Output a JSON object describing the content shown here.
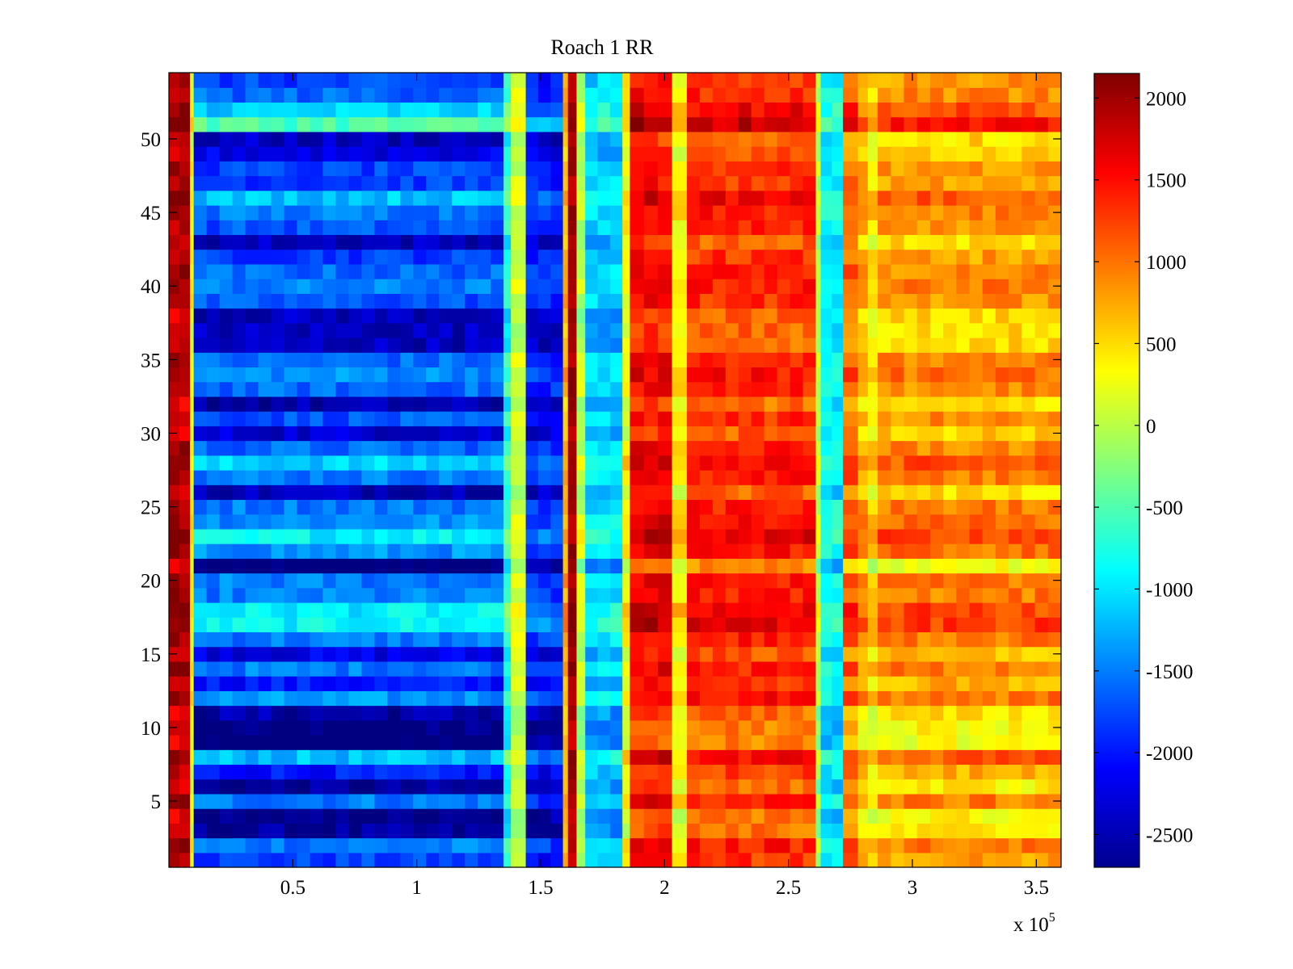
{
  "chart_data": {
    "type": "heatmap",
    "title": "Roach 1 RR",
    "xlabel": "",
    "ylabel": "",
    "x_range": [
      0,
      360000
    ],
    "y_range": [
      0.5,
      54.5
    ],
    "x_ticks": [
      50000,
      100000,
      150000,
      200000,
      250000,
      300000,
      350000
    ],
    "x_tick_labels": [
      "0.5",
      "1",
      "1.5",
      "2",
      "2.5",
      "3",
      "3.5"
    ],
    "x_multiplier_label": "x 10",
    "x_multiplier_exponent": "5",
    "y_ticks": [
      5,
      10,
      15,
      20,
      25,
      30,
      35,
      40,
      45,
      50
    ],
    "y_tick_labels": [
      "5",
      "10",
      "15",
      "20",
      "25",
      "30",
      "35",
      "40",
      "45",
      "50"
    ],
    "rows": 54,
    "colormap": "jet",
    "color_range": [
      -2700,
      2150
    ],
    "colorbar": {
      "ticks": [
        2000,
        1500,
        1000,
        500,
        0,
        -500,
        -1000,
        -1500,
        -2000,
        -2500
      ],
      "tick_labels": [
        "2000",
        "1500",
        "1000",
        "500",
        "0",
        "-500",
        "-1000",
        "-1500",
        "-2000",
        "-2500"
      ]
    },
    "column_bands": [
      {
        "x_start": 0,
        "x_end": 8500,
        "base_value": 1900,
        "row_sensitivity": 0.3
      },
      {
        "x_start": 8500,
        "x_end": 10000,
        "base_value": 300,
        "row_sensitivity": 0.2
      },
      {
        "x_start": 10000,
        "x_end": 135000,
        "base_value": -1800,
        "row_sensitivity": 1.0
      },
      {
        "x_start": 135000,
        "x_end": 138000,
        "base_value": -700,
        "row_sensitivity": 0.5
      },
      {
        "x_start": 138000,
        "x_end": 144000,
        "base_value": 100,
        "row_sensitivity": 0.2
      },
      {
        "x_start": 144000,
        "x_end": 159000,
        "base_value": -2000,
        "row_sensitivity": 0.6
      },
      {
        "x_start": 159000,
        "x_end": 161000,
        "base_value": 700,
        "row_sensitivity": 0.2
      },
      {
        "x_start": 161000,
        "x_end": 164500,
        "base_value": 1950,
        "row_sensitivity": 0.1
      },
      {
        "x_start": 164500,
        "x_end": 168000,
        "base_value": 0,
        "row_sensitivity": 0.3
      },
      {
        "x_start": 168000,
        "x_end": 183000,
        "base_value": -1100,
        "row_sensitivity": 0.4
      },
      {
        "x_start": 183000,
        "x_end": 186000,
        "base_value": 300,
        "row_sensitivity": 0.3
      },
      {
        "x_start": 186000,
        "x_end": 203000,
        "base_value": 1500,
        "row_sensitivity": 0.4
      },
      {
        "x_start": 203000,
        "x_end": 209000,
        "base_value": 350,
        "row_sensitivity": 0.3
      },
      {
        "x_start": 209000,
        "x_end": 261000,
        "base_value": 1300,
        "row_sensitivity": 0.4
      },
      {
        "x_start": 261000,
        "x_end": 263000,
        "base_value": 0,
        "row_sensitivity": 0.3
      },
      {
        "x_start": 263000,
        "x_end": 272000,
        "base_value": -900,
        "row_sensitivity": 0.3
      },
      {
        "x_start": 272000,
        "x_end": 278000,
        "base_value": 1050,
        "row_sensitivity": 0.4
      },
      {
        "x_start": 278000,
        "x_end": 282000,
        "base_value": 700,
        "row_sensitivity": 0.4
      },
      {
        "x_start": 282000,
        "x_end": 286000,
        "base_value": 450,
        "row_sensitivity": 0.4
      },
      {
        "x_start": 286000,
        "x_end": 360000,
        "base_value": 800,
        "row_sensitivity": 0.5
      }
    ],
    "row_offsets": [
      0,
      300,
      -800,
      -900,
      300,
      -800,
      -200,
      600,
      -1000,
      -900,
      -700,
      400,
      -200,
      300,
      -400,
      300,
      900,
      850,
      300,
      300,
      -1000,
      400,
      900,
      400,
      300,
      -600,
      300,
      700,
      200,
      -500,
      100,
      -700,
      200,
      400,
      200,
      -600,
      -600,
      -600,
      100,
      300,
      200,
      0,
      -600,
      100,
      300,
      650,
      0,
      0,
      -400,
      -600,
      1300,
      700,
      200,
      0
    ]
  }
}
